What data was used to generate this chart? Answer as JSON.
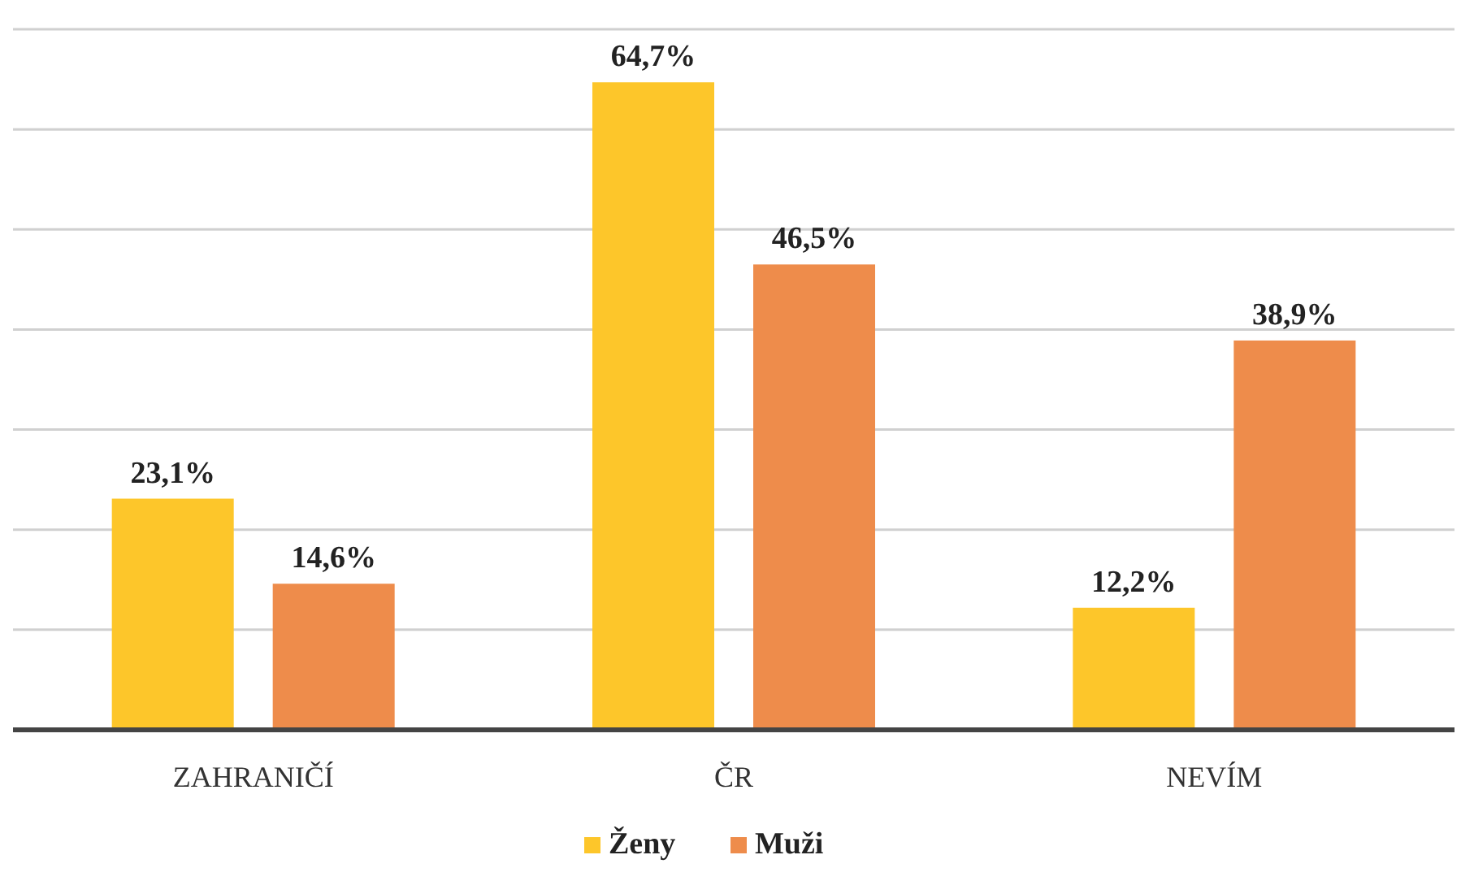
{
  "chart_data": {
    "type": "bar",
    "categories": [
      "ZAHRANIČÍ",
      "ČR",
      "NEVÍM"
    ],
    "series": [
      {
        "name": "Ženy",
        "color": "#fdc62a",
        "values": [
          23.1,
          64.7,
          12.2
        ],
        "value_labels": [
          "23,1%",
          "64,7%",
          "12,2%"
        ]
      },
      {
        "name": "Muži",
        "color": "#ee8c4b",
        "values": [
          14.6,
          46.5,
          38.9
        ],
        "value_labels": [
          "14,6%",
          "46,5%",
          "38,9%"
        ]
      }
    ],
    "ylim": [
      0,
      70
    ],
    "yticks": [
      {
        "value": 0,
        "label": null
      },
      {
        "value": 10,
        "label": null
      },
      {
        "value": 20,
        "label": null
      },
      {
        "value": 30,
        "label": null
      },
      {
        "value": 40,
        "label": null
      },
      {
        "value": 50,
        "label": null
      },
      {
        "value": 60,
        "label": null
      },
      {
        "value": 70,
        "label": null
      }
    ],
    "tick_labels": "x",
    "grid": "y",
    "legend": "bottom"
  }
}
